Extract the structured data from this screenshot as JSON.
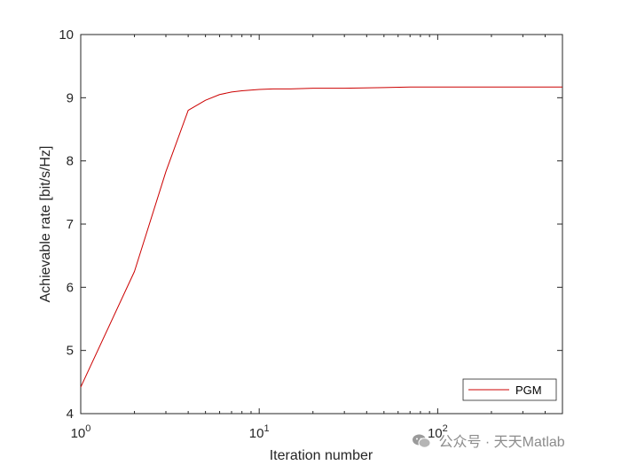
{
  "chart_data": {
    "type": "line",
    "xscale": "log",
    "xlim": [
      1,
      500
    ],
    "ylim": [
      4,
      10
    ],
    "xlabel": "Iteration number",
    "ylabel": "Achievable rate [bit/s/Hz]",
    "x_ticks": [
      1,
      10,
      100
    ],
    "x_tick_labels": [
      {
        "base": "10",
        "exp": "0"
      },
      {
        "base": "10",
        "exp": "1"
      },
      {
        "base": "10",
        "exp": "2"
      }
    ],
    "y_ticks": [
      4,
      5,
      6,
      7,
      8,
      9,
      10
    ],
    "y_tick_labels": [
      "4",
      "5",
      "6",
      "7",
      "8",
      "9",
      "10"
    ],
    "legend_position": "bottom-right",
    "grid": false,
    "series": [
      {
        "name": "PGM",
        "color": "#cc0000",
        "x": [
          1,
          2,
          3,
          4,
          5,
          6,
          7,
          8,
          10,
          12,
          15,
          20,
          30,
          50,
          70,
          100,
          200,
          300,
          500
        ],
        "y": [
          4.42,
          6.25,
          7.83,
          8.8,
          8.96,
          9.05,
          9.09,
          9.11,
          9.13,
          9.14,
          9.14,
          9.15,
          9.15,
          9.16,
          9.17,
          9.17,
          9.17,
          9.17,
          9.17
        ]
      }
    ]
  },
  "watermark": {
    "text": "公众号 · 天天Matlab",
    "icon": "wechat-icon"
  }
}
